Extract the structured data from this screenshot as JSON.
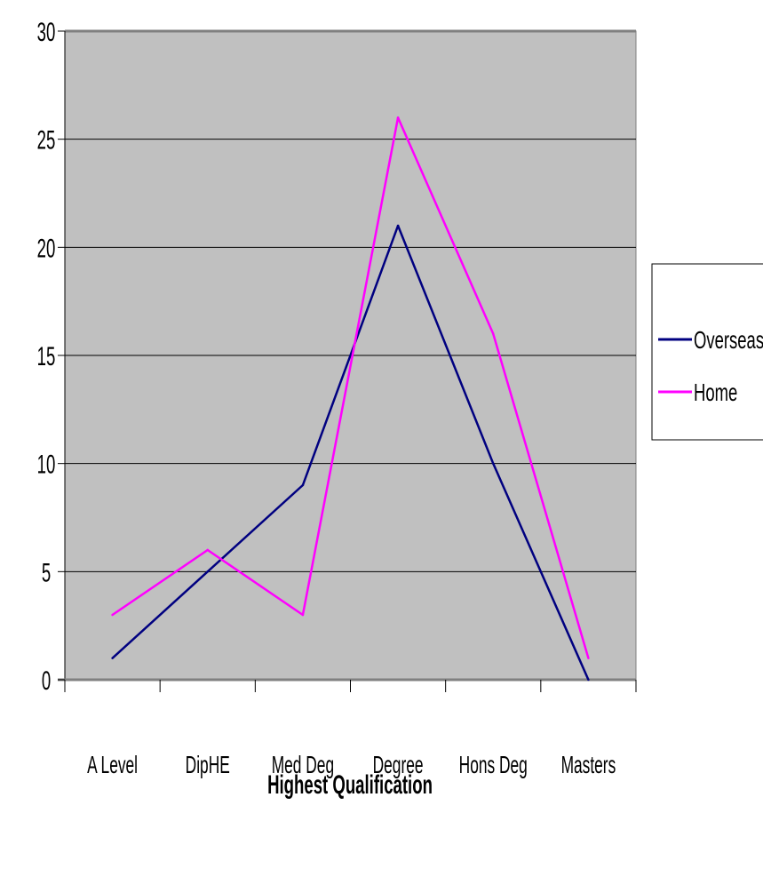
{
  "chart_data": {
    "type": "line",
    "categories": [
      "A Level",
      "DipHE",
      "Med Deg",
      "Degree",
      "Hons Deg",
      "Masters"
    ],
    "series": [
      {
        "name": "Overseas",
        "values": [
          1,
          5,
          9,
          21,
          10,
          0
        ],
        "color": "#000080"
      },
      {
        "name": "Home",
        "values": [
          3,
          6,
          3,
          26,
          16,
          1
        ],
        "color": "#ff00ff"
      }
    ],
    "xlabel": "Highest Qualification",
    "ylabel": "",
    "ylim": [
      0,
      30
    ],
    "yticks": [
      "0",
      "5",
      "10",
      "15",
      "20",
      "25",
      "30"
    ],
    "grid": true,
    "legend": "right",
    "plot_background": "#c0c0c0"
  }
}
